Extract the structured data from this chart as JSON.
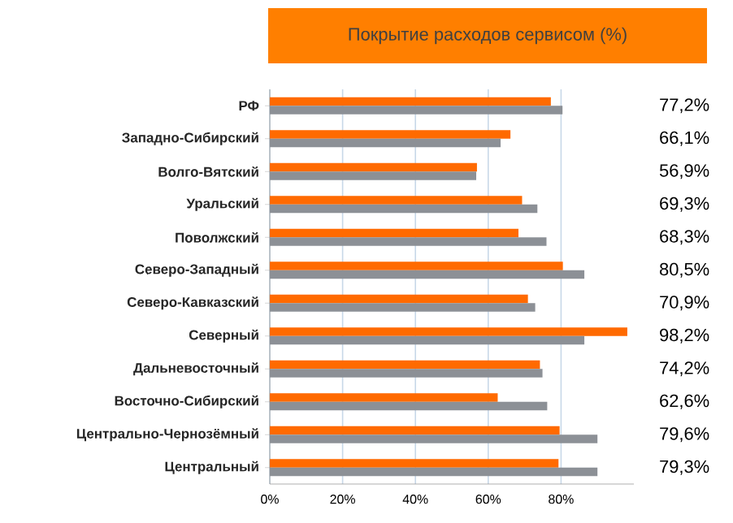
{
  "chart_data": {
    "type": "bar",
    "orientation": "horizontal",
    "title": "Покрытие расходов сервисом (%)",
    "categories": [
      "РФ",
      "Западно-Сибирский",
      "Волго-Вятский",
      "Уральский",
      "Поволжский",
      "Северо-Западный",
      "Северо-Кавказский",
      "Северный",
      "Дальневосточный",
      "Восточно-Сибирский",
      "Центрально-Чернозёмный",
      "Центральный"
    ],
    "series": [
      {
        "color": "#ff6a00",
        "values": [
          77.2,
          66.1,
          56.9,
          69.3,
          68.3,
          80.5,
          70.9,
          98.2,
          74.2,
          62.6,
          79.6,
          79.3
        ],
        "value_labels": [
          "77,2%",
          "66,1%",
          "56,9%",
          "69,3%",
          "68,3%",
          "80,5%",
          "70,9%",
          "98,2%",
          "74,2%",
          "62,6%",
          "79,6%",
          "79,3%"
        ]
      },
      {
        "color": "#8c9096",
        "values": [
          80.4,
          63.4,
          56.7,
          73.5,
          76,
          86.4,
          72.9,
          86.4,
          74.9,
          76.2,
          90,
          90
        ]
      }
    ],
    "xlim": [
      0,
      100
    ],
    "xticks": [
      {
        "value": 0,
        "label": "0%"
      },
      {
        "value": 20,
        "label": "20%"
      },
      {
        "value": 40,
        "label": "40%"
      },
      {
        "value": 60,
        "label": "60%"
      },
      {
        "value": 80,
        "label": "80%"
      }
    ],
    "grid": "x"
  }
}
